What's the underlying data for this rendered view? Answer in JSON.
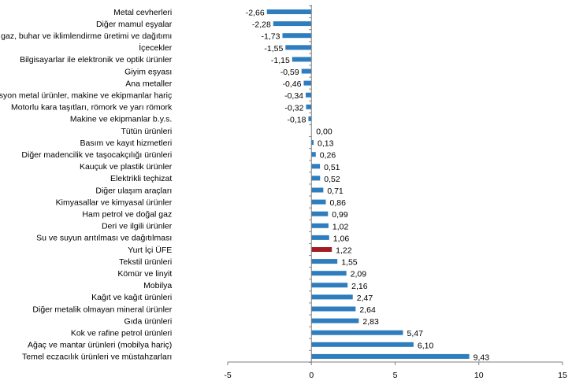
{
  "chart_data": {
    "type": "bar",
    "orientation": "horizontal",
    "categories": [
      "Metal cevherleri",
      "Diğer mamul eşyalar",
      "Elektrik, gaz, buhar ve iklimlendirme üretimi ve dağıtımı",
      "İçecekler",
      "Bilgisayarlar ile elektronik ve optik ürünler",
      "Giyim eşyası",
      "Ana metaller",
      "Fabrikasyon metal ürünler, makine ve ekipmanlar hariç",
      "Motorlu kara taşıtları, römork ve yarı römork",
      "Makine ve ekipmanlar b.y.s.",
      "Tütün ürünleri",
      "Basım ve kayıt hizmetleri",
      "Diğer madencilik ve taşocakçılığı ürünleri",
      "Kauçuk ve plastik ürünler",
      "Elektrikli teçhizat",
      "Diğer ulaşım araçları",
      "Kimyasallar ve kimyasal ürünler",
      "Ham petrol ve doğal gaz",
      "Deri ve ilgili ürünler",
      "Su ve suyun arıtılması ve dağıtılması",
      "Yurt İçi ÜFE",
      "Tekstil ürünleri",
      "Kömür ve linyit",
      "Mobilya",
      "Kağıt ve kağıt ürünleri",
      "Diğer metalik olmayan mineral ürünler",
      "Gıda ürünleri",
      "Kok ve rafine petrol ürünleri",
      "Ağaç ve mantar ürünleri (mobilya hariç)",
      "Temel eczacılık ürünleri ve müstahzarları"
    ],
    "values": [
      -2.66,
      -2.28,
      -1.73,
      -1.55,
      -1.15,
      -0.59,
      -0.46,
      -0.34,
      -0.32,
      -0.18,
      0.0,
      0.13,
      0.26,
      0.51,
      0.52,
      0.71,
      0.86,
      0.99,
      1.02,
      1.06,
      1.22,
      1.55,
      2.09,
      2.16,
      2.47,
      2.64,
      2.83,
      5.47,
      6.1,
      9.43
    ],
    "value_labels": [
      "-2,66",
      "-2,28",
      "-1,73",
      "-1,55",
      "-1,15",
      "-0,59",
      "-0,46",
      "-0,34",
      "-0,32",
      "-0,18",
      "0,00",
      "0,13",
      "0,26",
      "0,51",
      "0,52",
      "0,71",
      "0,86",
      "0,99",
      "1,02",
      "1,06",
      "1,22",
      "1,55",
      "2,09",
      "2,16",
      "2,47",
      "2,64",
      "2,83",
      "5,47",
      "6,10",
      "9,43"
    ],
    "highlight_category": "Yurt İçi ÜFE",
    "xlim": [
      -5,
      15
    ],
    "xticks": [
      -5,
      0,
      5,
      10,
      15
    ],
    "xtick_labels": [
      "-5",
      "0",
      "5",
      "10",
      "15"
    ],
    "title": "",
    "xlabel": "",
    "ylabel": "",
    "grid": false,
    "legend": "none",
    "colors": {
      "bar": "#2E7DBE",
      "highlight": "#A31D24",
      "axis": "#7F7F7F"
    }
  }
}
